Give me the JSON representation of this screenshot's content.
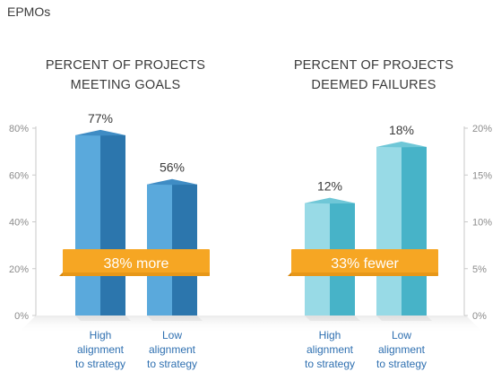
{
  "header": {
    "label": "EPMOs"
  },
  "chart_data": [
    {
      "type": "bar",
      "title_lines": [
        "PERCENT OF PROJECTS",
        "MEETING GOALS"
      ],
      "categories": [
        [
          "High",
          "alignment",
          "to strategy"
        ],
        [
          "Low",
          "alignment",
          "to strategy"
        ]
      ],
      "values": [
        77,
        56
      ],
      "data_labels": [
        "77%",
        "56%"
      ],
      "yticks": [
        "0%",
        "20%",
        "40%",
        "60%",
        "80%"
      ],
      "ytick_values": [
        0,
        20,
        40,
        60,
        80
      ],
      "ylim": [
        0,
        80
      ],
      "axis_side": "left",
      "banner_text": "38% more",
      "colors": {
        "front": "#5aa9dc",
        "side": "#2c76ad",
        "top": "#3f8cc4"
      }
    },
    {
      "type": "bar",
      "title_lines": [
        "PERCENT OF PROJECTS",
        "DEEMED FAILURES"
      ],
      "categories": [
        [
          "High",
          "alignment",
          "to strategy"
        ],
        [
          "Low",
          "alignment",
          "to strategy"
        ]
      ],
      "values": [
        12,
        18
      ],
      "data_labels": [
        "12%",
        "18%"
      ],
      "yticks": [
        "0%",
        "5%",
        "10%",
        "15%",
        "20%"
      ],
      "ytick_values": [
        0,
        5,
        10,
        15,
        20
      ],
      "ylim": [
        0,
        20
      ],
      "axis_side": "right",
      "banner_text": "33% fewer",
      "colors": {
        "front": "#98dae6",
        "side": "#47b3c8",
        "top": "#6fc7d7"
      }
    }
  ],
  "colors": {
    "banner": "#f6a623",
    "banner_dark": "#d8870d",
    "axis": "#c8c8c8",
    "tick_text": "#8c8c8c",
    "category_text": "#2e6fb0",
    "text": "#3a3a3a"
  }
}
